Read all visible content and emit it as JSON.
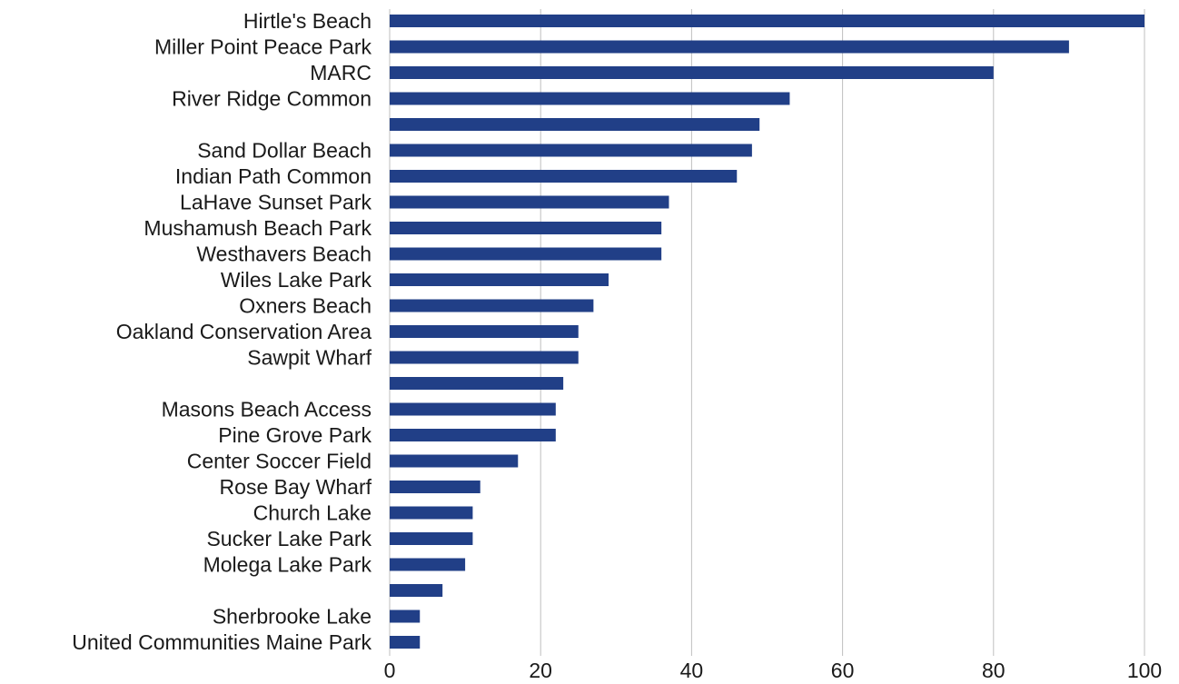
{
  "chart_data": {
    "type": "bar",
    "orientation": "horizontal",
    "categories": [
      "Hirtle's Beach",
      "Miller Point Peace Park",
      "MARC",
      "River Ridge Common",
      "",
      "Sand Dollar Beach",
      "Indian Path Common",
      "LaHave Sunset Park",
      "Mushamush Beach Park",
      "Westhavers Beach",
      "Wiles Lake Park",
      "Oxners Beach",
      "Oakland Conservation Area",
      "Sawpit Wharf",
      "",
      "Masons Beach Access",
      "Pine Grove Park",
      "Center Soccer Field",
      "Rose Bay Wharf",
      "Church Lake",
      "Sucker Lake Park",
      "Molega Lake Park",
      "",
      "Sherbrooke Lake",
      "United Communities Maine Park"
    ],
    "values": [
      100,
      90,
      80,
      53,
      49,
      48,
      46,
      37,
      36,
      36,
      29,
      27,
      25,
      25,
      23,
      22,
      22,
      17,
      12,
      11,
      11,
      10,
      7,
      4,
      4
    ],
    "xlim": [
      0,
      100
    ],
    "xticks": [
      0,
      20,
      40,
      60,
      80,
      100
    ],
    "grid": "vertical",
    "legend": "none",
    "bar_color": "#213f87",
    "grid_color": "#bfbfbf"
  }
}
